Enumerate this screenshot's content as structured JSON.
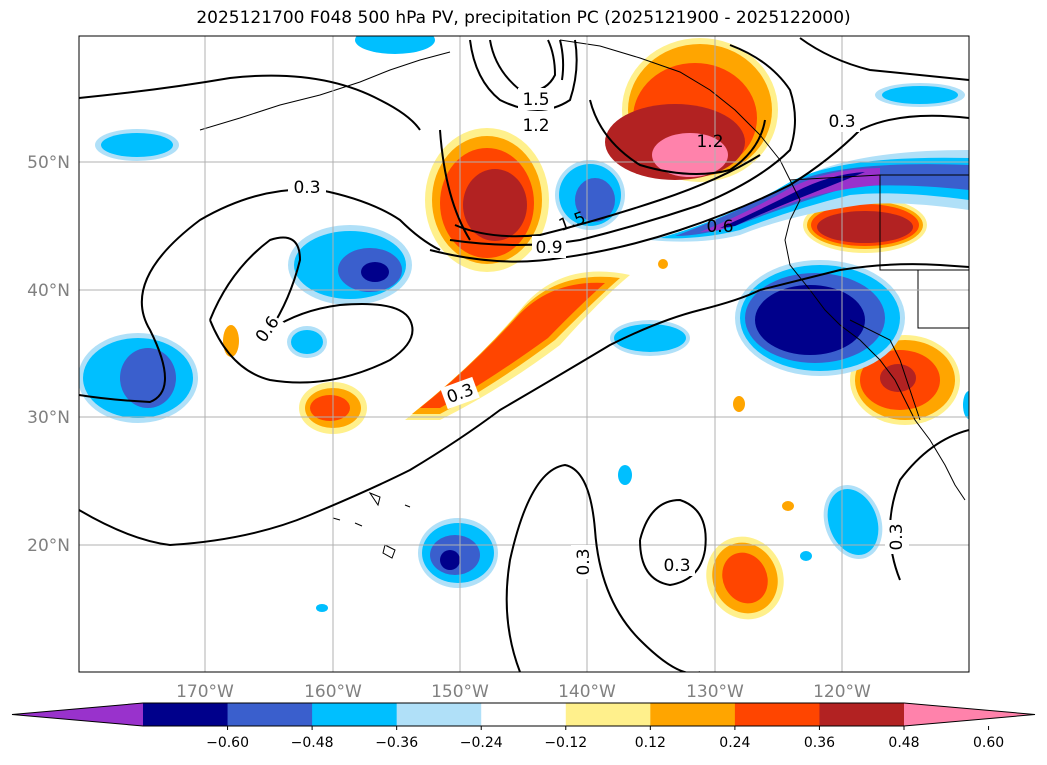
{
  "title": "2025121700 F048 500 hPa PV, precipitation PC (2025121900 - 2025122000)",
  "map": {
    "lat_ticks": [
      "50°N",
      "40°N",
      "30°N",
      "20°N"
    ],
    "lon_ticks": [
      "170°W",
      "160°W",
      "150°W",
      "140°W",
      "130°W",
      "120°W"
    ],
    "contour_labels": [
      "0.3",
      "0.6",
      "0.9",
      "1.2",
      "1.5",
      "0.3",
      "0.3",
      "0.3",
      "0.3",
      "1.2",
      "1.5",
      "0.6",
      "0.3"
    ],
    "grid": true
  },
  "colorbar": {
    "ticks": [
      "−0.60",
      "−0.48",
      "−0.36",
      "−0.24",
      "−0.12",
      "0.12",
      "0.24",
      "0.36",
      "0.48",
      "0.60"
    ],
    "colors": [
      "#9932cc",
      "#00008b",
      "#3a5fcd",
      "#00bfff",
      "#b0e0f8",
      "#ffffff",
      "#fff08c",
      "#ffa500",
      "#ff4500",
      "#b22222",
      "#ff82ab"
    ],
    "extend": "both"
  }
}
